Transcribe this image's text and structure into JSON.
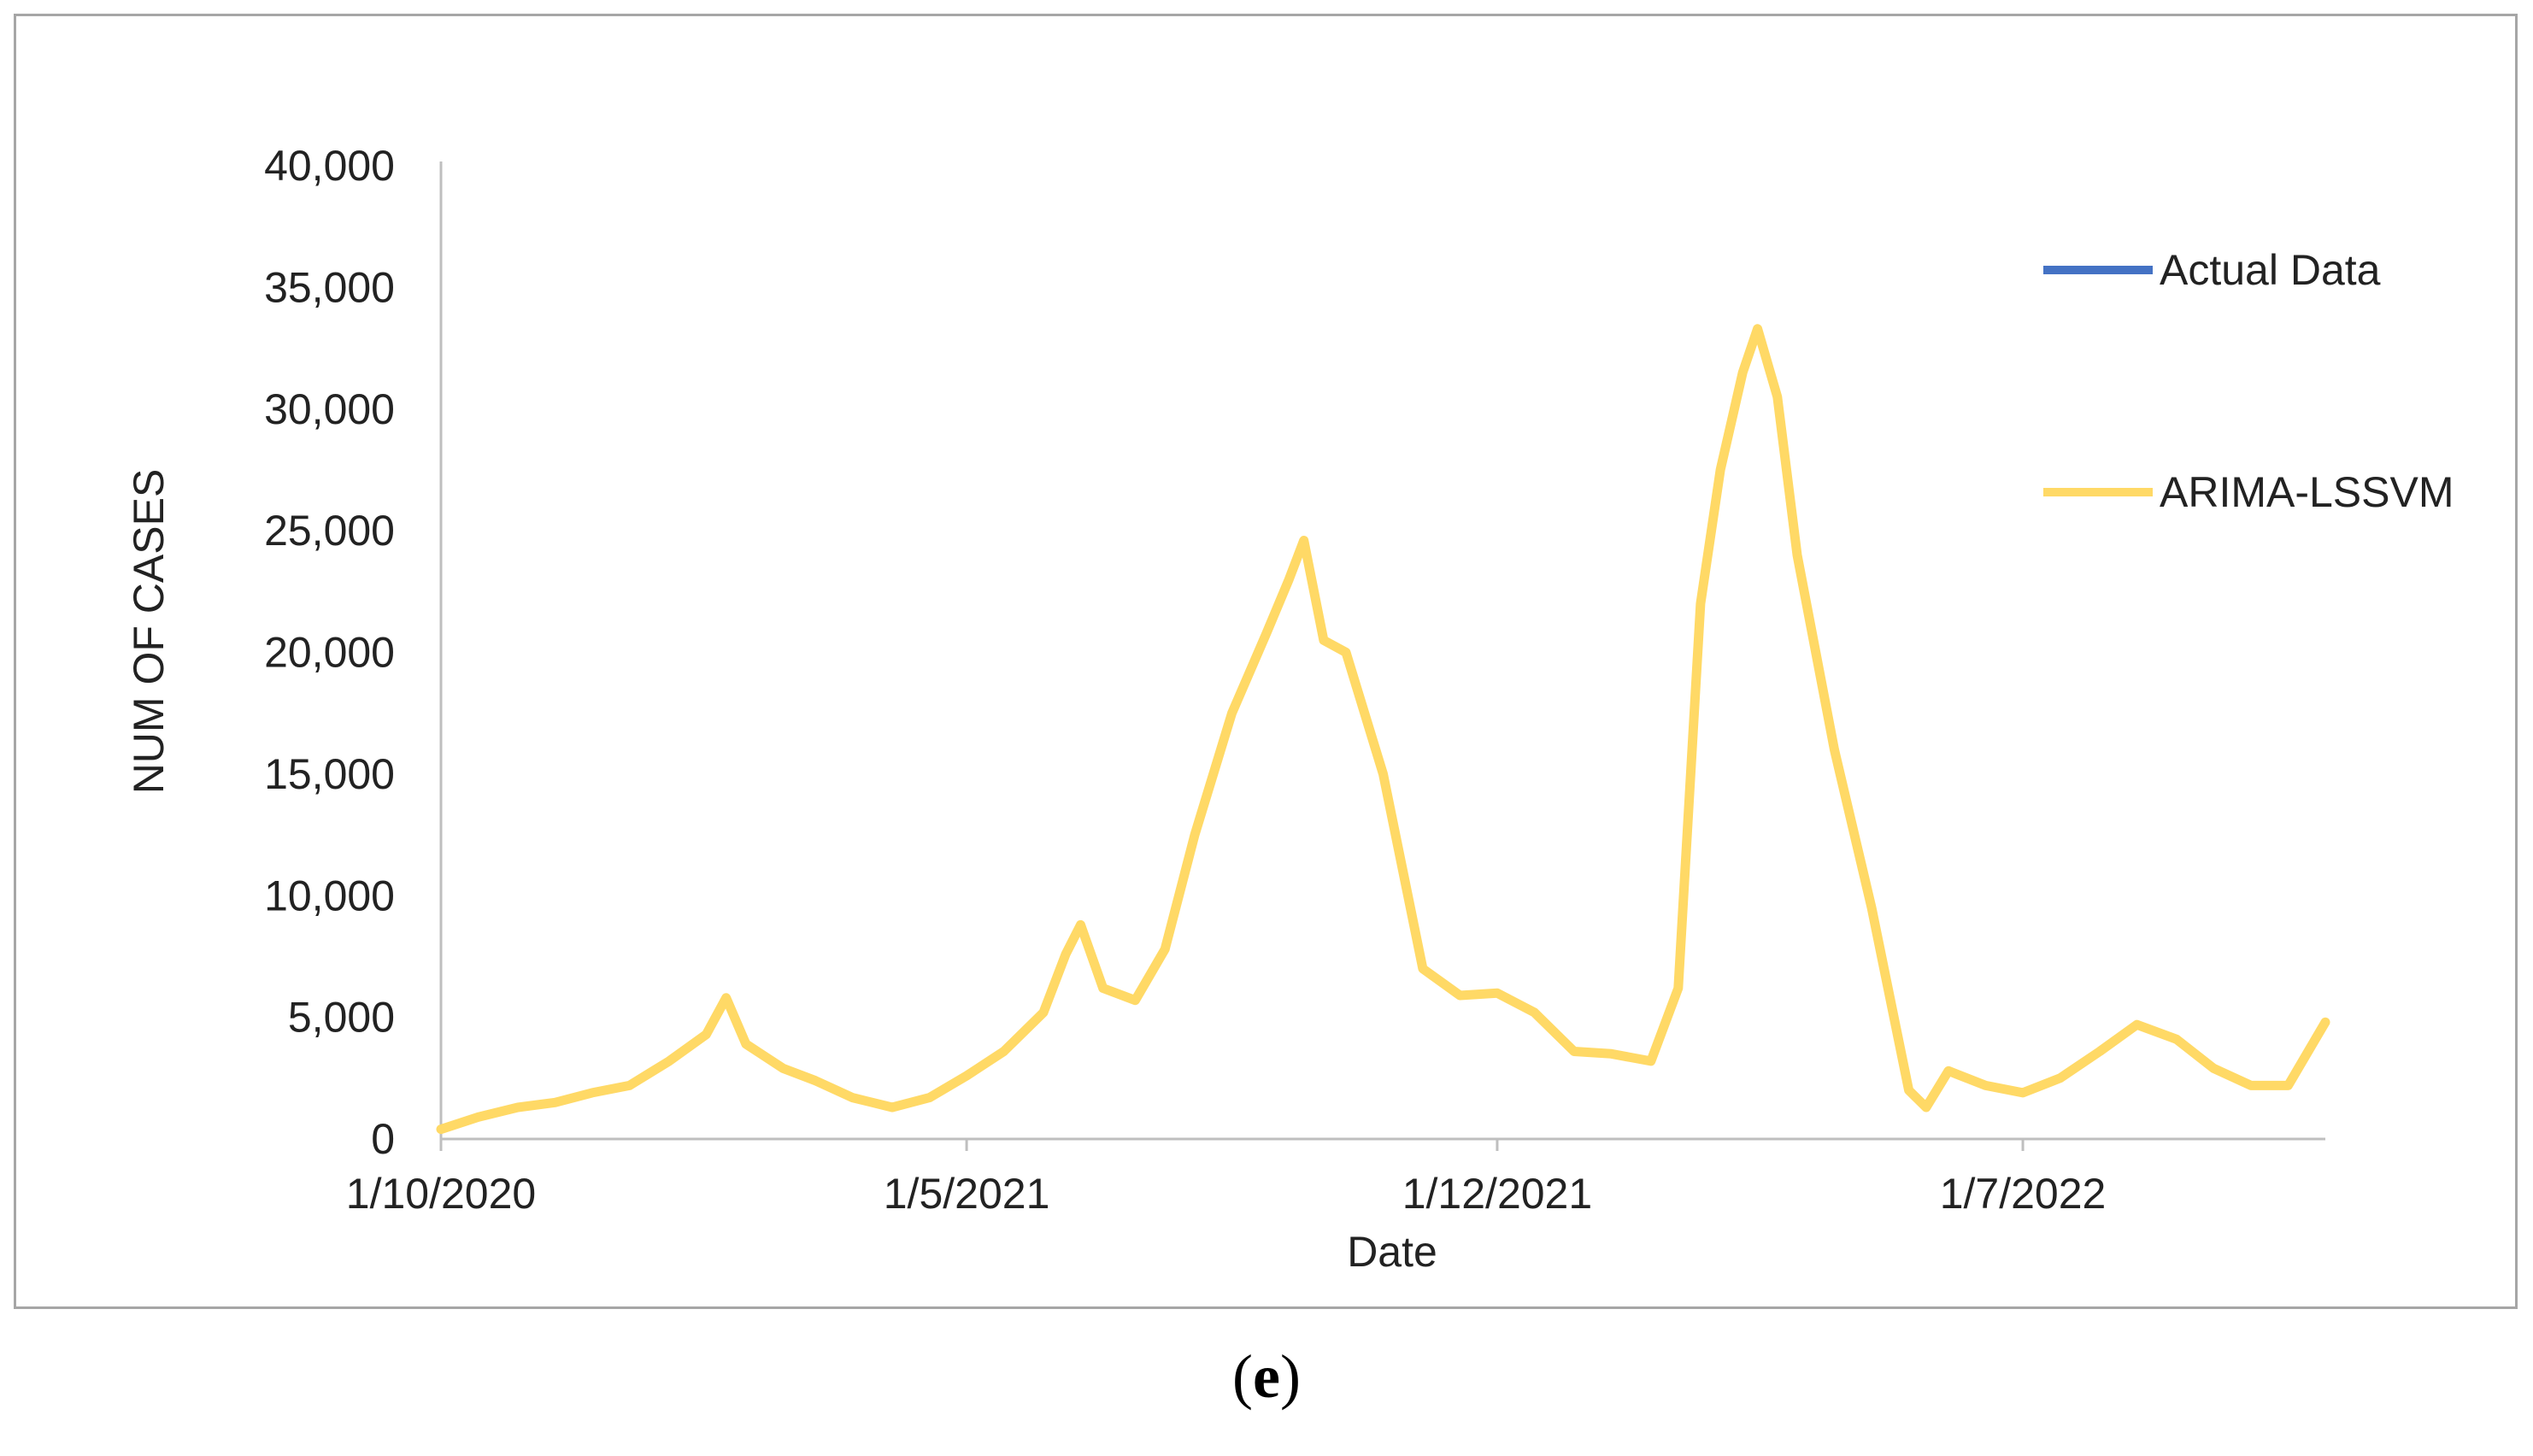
{
  "chart_data": {
    "type": "line",
    "xlabel": "Date",
    "ylabel": "NUM OF CASES",
    "ylim": [
      0,
      40000
    ],
    "yticks": [
      {
        "value": 0,
        "label": "0"
      },
      {
        "value": 5000,
        "label": "5,000"
      },
      {
        "value": 10000,
        "label": "10,000"
      },
      {
        "value": 15000,
        "label": "15,000"
      },
      {
        "value": 20000,
        "label": "20,000"
      },
      {
        "value": 25000,
        "label": "25,000"
      },
      {
        "value": 30000,
        "label": "30,000"
      },
      {
        "value": 35000,
        "label": "35,000"
      },
      {
        "value": 40000,
        "label": "40,000"
      }
    ],
    "xlim": [
      "2020-10-01",
      "2022-10-31"
    ],
    "xticks": [
      {
        "date": "2020-10-01",
        "label": "1/10/2020"
      },
      {
        "date": "2021-05-01",
        "label": "1/5/2021"
      },
      {
        "date": "2021-12-01",
        "label": "1/12/2021"
      },
      {
        "date": "2022-07-01",
        "label": "1/7/2022"
      }
    ],
    "legend": {
      "placement": "right"
    },
    "series": [
      {
        "name": "Actual Data",
        "color": "#4472c4",
        "points": [
          [
            "2020-10-01",
            400
          ],
          [
            "2020-10-16",
            900
          ],
          [
            "2020-11-01",
            1300
          ],
          [
            "2020-11-16",
            1500
          ],
          [
            "2020-12-01",
            1900
          ],
          [
            "2020-12-16",
            2200
          ],
          [
            "2021-01-01",
            3200
          ],
          [
            "2021-01-16",
            4300
          ],
          [
            "2021-01-24",
            5800
          ],
          [
            "2021-02-01",
            3900
          ],
          [
            "2021-02-16",
            2900
          ],
          [
            "2021-03-01",
            2400
          ],
          [
            "2021-03-16",
            1700
          ],
          [
            "2021-04-01",
            1300
          ],
          [
            "2021-04-16",
            1700
          ],
          [
            "2021-05-01",
            2600
          ],
          [
            "2021-05-16",
            3600
          ],
          [
            "2021-06-01",
            5200
          ],
          [
            "2021-06-10",
            7600
          ],
          [
            "2021-06-16",
            8800
          ],
          [
            "2021-06-25",
            6200
          ],
          [
            "2021-07-08",
            5700
          ],
          [
            "2021-07-20",
            7800
          ],
          [
            "2021-08-01",
            12500
          ],
          [
            "2021-08-16",
            17500
          ],
          [
            "2021-08-30",
            20800
          ],
          [
            "2021-09-08",
            23000
          ],
          [
            "2021-09-14",
            24600
          ],
          [
            "2021-09-22",
            20500
          ],
          [
            "2021-10-01",
            20000
          ],
          [
            "2021-10-16",
            15000
          ],
          [
            "2021-11-01",
            7000
          ],
          [
            "2021-11-16",
            5900
          ],
          [
            "2021-12-01",
            6000
          ],
          [
            "2021-12-16",
            5200
          ],
          [
            "2022-01-01",
            3600
          ],
          [
            "2022-01-16",
            3500
          ],
          [
            "2022-02-01",
            3200
          ],
          [
            "2022-02-12",
            6200
          ],
          [
            "2022-02-21",
            22000
          ],
          [
            "2022-03-01",
            27500
          ],
          [
            "2022-03-10",
            31500
          ],
          [
            "2022-03-16",
            33300
          ],
          [
            "2022-03-24",
            30500
          ],
          [
            "2022-04-01",
            24000
          ],
          [
            "2022-04-16",
            16000
          ],
          [
            "2022-05-01",
            9500
          ],
          [
            "2022-05-16",
            2000
          ],
          [
            "2022-05-23",
            1300
          ],
          [
            "2022-06-01",
            2800
          ],
          [
            "2022-06-16",
            2200
          ],
          [
            "2022-07-01",
            1900
          ],
          [
            "2022-07-16",
            2500
          ],
          [
            "2022-08-01",
            3600
          ],
          [
            "2022-08-16",
            4700
          ],
          [
            "2022-09-01",
            4100
          ],
          [
            "2022-09-16",
            2900
          ],
          [
            "2022-10-01",
            2200
          ],
          [
            "2022-10-16",
            2200
          ],
          [
            "2022-10-31",
            4800
          ]
        ]
      },
      {
        "name": "ARIMA-LSSVM",
        "color": "#ffd966",
        "points": [
          [
            "2020-10-01",
            400
          ],
          [
            "2020-10-16",
            900
          ],
          [
            "2020-11-01",
            1300
          ],
          [
            "2020-11-16",
            1500
          ],
          [
            "2020-12-01",
            1900
          ],
          [
            "2020-12-16",
            2200
          ],
          [
            "2021-01-01",
            3200
          ],
          [
            "2021-01-16",
            4300
          ],
          [
            "2021-01-24",
            5800
          ],
          [
            "2021-02-01",
            3900
          ],
          [
            "2021-02-16",
            2900
          ],
          [
            "2021-03-01",
            2400
          ],
          [
            "2021-03-16",
            1700
          ],
          [
            "2021-04-01",
            1300
          ],
          [
            "2021-04-16",
            1700
          ],
          [
            "2021-05-01",
            2600
          ],
          [
            "2021-05-16",
            3600
          ],
          [
            "2021-06-01",
            5200
          ],
          [
            "2021-06-10",
            7600
          ],
          [
            "2021-06-16",
            8800
          ],
          [
            "2021-06-25",
            6200
          ],
          [
            "2021-07-08",
            5700
          ],
          [
            "2021-07-20",
            7800
          ],
          [
            "2021-08-01",
            12500
          ],
          [
            "2021-08-16",
            17500
          ],
          [
            "2021-08-30",
            20800
          ],
          [
            "2021-09-08",
            23000
          ],
          [
            "2021-09-14",
            24600
          ],
          [
            "2021-09-22",
            20500
          ],
          [
            "2021-10-01",
            20000
          ],
          [
            "2021-10-16",
            15000
          ],
          [
            "2021-11-01",
            7000
          ],
          [
            "2021-11-16",
            5900
          ],
          [
            "2021-12-01",
            6000
          ],
          [
            "2021-12-16",
            5200
          ],
          [
            "2022-01-01",
            3600
          ],
          [
            "2022-01-16",
            3500
          ],
          [
            "2022-02-01",
            3200
          ],
          [
            "2022-02-12",
            6200
          ],
          [
            "2022-02-21",
            22000
          ],
          [
            "2022-03-01",
            27500
          ],
          [
            "2022-03-10",
            31500
          ],
          [
            "2022-03-16",
            33300
          ],
          [
            "2022-03-24",
            30500
          ],
          [
            "2022-04-01",
            24000
          ],
          [
            "2022-04-16",
            16000
          ],
          [
            "2022-05-01",
            9500
          ],
          [
            "2022-05-16",
            2000
          ],
          [
            "2022-05-23",
            1300
          ],
          [
            "2022-06-01",
            2800
          ],
          [
            "2022-06-16",
            2200
          ],
          [
            "2022-07-01",
            1900
          ],
          [
            "2022-07-16",
            2500
          ],
          [
            "2022-08-01",
            3600
          ],
          [
            "2022-08-16",
            4700
          ],
          [
            "2022-09-01",
            4100
          ],
          [
            "2022-09-16",
            2900
          ],
          [
            "2022-10-01",
            2200
          ],
          [
            "2022-10-16",
            2200
          ],
          [
            "2022-10-31",
            4800
          ]
        ]
      }
    ]
  },
  "caption": {
    "open": "(",
    "letter": "e",
    "close": ")"
  }
}
